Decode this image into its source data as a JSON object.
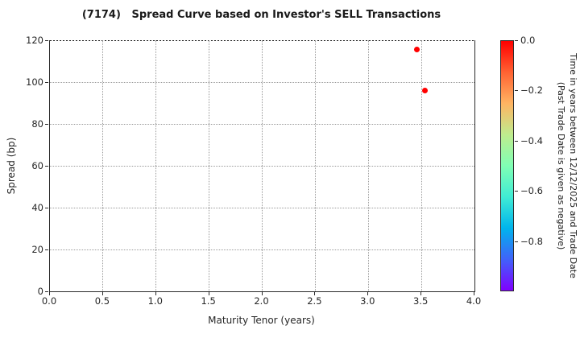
{
  "title": "(7174)   Spread Curve based on Investor's SELL Transactions",
  "chart_data": {
    "type": "scatter",
    "title": "(7174)   Spread Curve based on Investor's SELL Transactions",
    "xlabel": "Maturity Tenor (years)",
    "ylabel": "Spread (bp)",
    "xlim": [
      0.0,
      4.0
    ],
    "ylim": [
      0,
      120
    ],
    "x_ticks": [
      0.0,
      0.5,
      1.0,
      1.5,
      2.0,
      2.5,
      3.0,
      3.5,
      4.0
    ],
    "y_ticks": [
      0,
      20,
      40,
      60,
      80,
      100,
      120
    ],
    "grid": true,
    "grid_style": "dotted",
    "points": [
      {
        "x": 3.46,
        "y": 115.5,
        "time": 0.0,
        "color": "#ff0000"
      },
      {
        "x": 3.53,
        "y": 96.0,
        "time": 0.0,
        "color": "#ff0000"
      }
    ],
    "colorbar": {
      "label_line1": "Time in years between 12/12/2025 and Trade Date",
      "label_line2": "(Past Trade Date is given as negative)",
      "ticks": [
        0.0,
        -0.2,
        -0.4,
        -0.6,
        -0.8
      ],
      "range": [
        0.0,
        -1.0
      ],
      "colormap": "rainbow",
      "gradient_top_to_bottom": [
        "#ff0000",
        "#ff6232",
        "#ffb462",
        "#bfec8e",
        "#80ffb4",
        "#40ecd4",
        "#00b4ec",
        "#4062fa",
        "#8000ff"
      ]
    }
  }
}
